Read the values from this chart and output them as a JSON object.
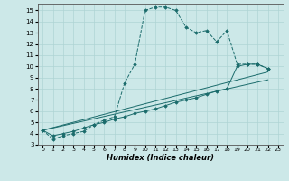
{
  "xlabel": "Humidex (Indice chaleur)",
  "xlim": [
    -0.5,
    23.5
  ],
  "ylim": [
    3,
    15.6
  ],
  "yticks": [
    3,
    4,
    5,
    6,
    7,
    8,
    9,
    10,
    11,
    12,
    13,
    14,
    15
  ],
  "xticks": [
    0,
    1,
    2,
    3,
    4,
    5,
    6,
    7,
    8,
    9,
    10,
    11,
    12,
    13,
    14,
    15,
    16,
    17,
    18,
    19,
    20,
    21,
    22,
    23
  ],
  "bg_color": "#cce8e8",
  "line_color": "#1a6b6b",
  "grid_color": "#afd4d4",
  "line1_x": [
    0,
    1,
    2,
    3,
    4,
    5,
    6,
    7,
    8,
    9,
    10,
    11,
    12,
    13,
    14,
    15,
    16,
    17,
    18,
    19,
    20,
    21,
    22
  ],
  "line1_y": [
    4.3,
    3.5,
    3.8,
    4.0,
    4.2,
    4.8,
    5.2,
    5.5,
    8.5,
    10.2,
    15.0,
    15.3,
    15.3,
    15.0,
    13.5,
    13.0,
    13.2,
    12.2,
    13.2,
    10.2,
    10.2,
    10.2,
    9.8
  ],
  "line2_x": [
    0,
    1,
    2,
    3,
    4,
    5,
    6,
    7,
    8,
    9,
    10,
    11,
    12,
    13,
    14,
    15,
    16,
    17,
    18,
    19,
    20,
    21,
    22
  ],
  "line2_y": [
    4.3,
    3.8,
    4.0,
    4.2,
    4.5,
    4.8,
    5.0,
    5.3,
    5.5,
    5.8,
    6.0,
    6.2,
    6.5,
    6.8,
    7.0,
    7.2,
    7.5,
    7.8,
    8.0,
    10.0,
    10.2,
    10.2,
    9.8
  ],
  "line3_x": [
    0,
    22
  ],
  "line3_y": [
    4.3,
    9.5
  ],
  "line4_x": [
    0,
    22
  ],
  "line4_y": [
    4.3,
    8.8
  ]
}
